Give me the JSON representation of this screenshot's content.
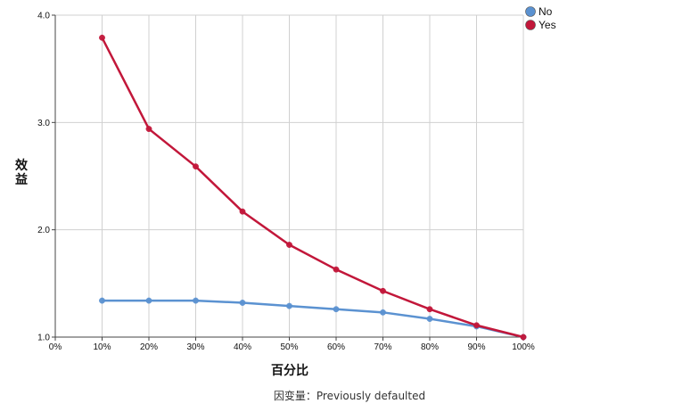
{
  "chart_data": {
    "type": "line",
    "x": [
      "0%",
      "10%",
      "20%",
      "30%",
      "40%",
      "50%",
      "60%",
      "70%",
      "80%",
      "90%",
      "100%"
    ],
    "x_values": [
      0,
      10,
      20,
      30,
      40,
      50,
      60,
      70,
      80,
      90,
      100
    ],
    "y_ticks": [
      "1.0",
      "2.0",
      "3.0",
      "4.0"
    ],
    "ylim": [
      1.0,
      4.0
    ],
    "xlim": [
      0,
      100
    ],
    "xlabel": "百分比",
    "ylabel_chars": [
      "效",
      "益"
    ],
    "caption": "因变量：Previously defaulted",
    "grid": true,
    "legend_position": "top-right",
    "series": [
      {
        "name": "No",
        "color": "#5b92d1",
        "x": [
          10,
          20,
          30,
          40,
          50,
          60,
          70,
          80,
          90,
          100
        ],
        "values": [
          1.34,
          1.34,
          1.34,
          1.32,
          1.29,
          1.26,
          1.23,
          1.17,
          1.1,
          1.0
        ]
      },
      {
        "name": "Yes",
        "color": "#c2173a",
        "x": [
          10,
          20,
          30,
          40,
          50,
          60,
          70,
          80,
          90,
          100
        ],
        "values": [
          3.79,
          2.94,
          2.59,
          2.17,
          1.86,
          1.63,
          1.43,
          1.26,
          1.11,
          1.0
        ]
      }
    ]
  }
}
